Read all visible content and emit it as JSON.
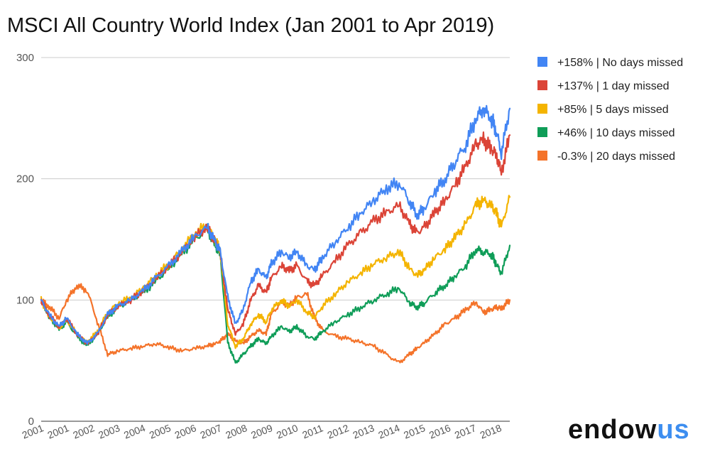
{
  "chart_data": {
    "type": "line",
    "title": "MSCI All Country World Index (Jan 2001 to Apr 2019)",
    "xlabel": "",
    "ylabel": "",
    "ylim": [
      0,
      300
    ],
    "yticks": [
      0,
      100,
      200,
      300
    ],
    "xlim": [
      2001.0,
      2019.33
    ],
    "xtick_labels": [
      "2001",
      "2001",
      "2002",
      "2003",
      "2004",
      "2005",
      "2006",
      "2007",
      "2008",
      "2009",
      "2010",
      "2011",
      "2012",
      "2013",
      "2014",
      "2015",
      "2016",
      "2017",
      "2018"
    ],
    "grid": true,
    "legend_position": "right",
    "series": [
      {
        "name": "+158% | No days missed",
        "color": "#4285f4",
        "x": [
          2001.0,
          2001.3,
          2001.7,
          2002.0,
          2002.4,
          2002.8,
          2003.2,
          2003.6,
          2004.0,
          2004.5,
          2005.0,
          2005.5,
          2006.0,
          2006.5,
          2007.0,
          2007.5,
          2007.8,
          2008.0,
          2008.3,
          2008.6,
          2008.9,
          2009.2,
          2009.5,
          2009.8,
          2010.0,
          2010.4,
          2010.7,
          2011.0,
          2011.4,
          2011.7,
          2012.0,
          2012.5,
          2013.0,
          2013.5,
          2014.0,
          2014.5,
          2015.0,
          2015.4,
          2015.7,
          2016.0,
          2016.4,
          2016.8,
          2017.2,
          2017.6,
          2018.0,
          2018.3,
          2018.6,
          2018.8,
          2019.0,
          2019.33
        ],
        "y": [
          100,
          88,
          78,
          85,
          72,
          64,
          72,
          88,
          95,
          100,
          108,
          118,
          128,
          140,
          152,
          160,
          148,
          140,
          102,
          80,
          92,
          115,
          125,
          118,
          130,
          140,
          135,
          140,
          128,
          125,
          135,
          148,
          160,
          172,
          182,
          192,
          197,
          182,
          170,
          176,
          190,
          200,
          215,
          228,
          250,
          258,
          250,
          240,
          222,
          258
        ]
      },
      {
        "name": "+137% | 1 day missed",
        "color": "#db4437",
        "x": [
          2001.0,
          2001.3,
          2001.7,
          2002.0,
          2002.4,
          2002.8,
          2003.2,
          2003.6,
          2004.0,
          2004.5,
          2005.0,
          2005.5,
          2006.0,
          2006.5,
          2007.0,
          2007.5,
          2007.8,
          2008.0,
          2008.3,
          2008.6,
          2008.9,
          2009.2,
          2009.5,
          2009.8,
          2010.0,
          2010.4,
          2010.7,
          2011.0,
          2011.4,
          2011.7,
          2012.0,
          2012.5,
          2013.0,
          2013.5,
          2014.0,
          2014.5,
          2015.0,
          2015.4,
          2015.7,
          2016.0,
          2016.4,
          2016.8,
          2017.2,
          2017.6,
          2018.0,
          2018.3,
          2018.6,
          2018.8,
          2019.0,
          2019.33
        ],
        "y": [
          100,
          88,
          78,
          85,
          72,
          64,
          72,
          88,
          95,
          100,
          108,
          118,
          128,
          140,
          152,
          160,
          148,
          140,
          92,
          72,
          80,
          100,
          112,
          106,
          118,
          128,
          124,
          128,
          115,
          112,
          120,
          132,
          145,
          155,
          165,
          172,
          178,
          163,
          155,
          160,
          172,
          182,
          195,
          210,
          228,
          232,
          225,
          220,
          205,
          236
        ]
      },
      {
        "name": "+85% | 5 days missed",
        "color": "#f4b400",
        "x": [
          2001.0,
          2001.3,
          2001.7,
          2002.0,
          2002.4,
          2002.8,
          2003.2,
          2003.6,
          2004.0,
          2004.5,
          2005.0,
          2005.5,
          2006.0,
          2006.5,
          2007.0,
          2007.5,
          2007.8,
          2008.0,
          2008.3,
          2008.6,
          2008.9,
          2009.2,
          2009.5,
          2009.8,
          2010.0,
          2010.4,
          2010.7,
          2011.0,
          2011.4,
          2011.7,
          2012.0,
          2012.5,
          2013.0,
          2013.5,
          2014.0,
          2014.5,
          2015.0,
          2015.4,
          2015.7,
          2016.0,
          2016.4,
          2016.8,
          2017.2,
          2017.6,
          2018.0,
          2018.3,
          2018.6,
          2018.8,
          2019.0,
          2019.33
        ],
        "y": [
          100,
          87,
          77,
          84,
          72,
          65,
          74,
          90,
          97,
          102,
          110,
          120,
          130,
          142,
          155,
          162,
          150,
          142,
          80,
          62,
          68,
          80,
          88,
          82,
          92,
          100,
          95,
          100,
          90,
          86,
          95,
          105,
          115,
          122,
          130,
          135,
          140,
          126,
          120,
          125,
          135,
          142,
          152,
          162,
          178,
          182,
          178,
          172,
          160,
          185
        ]
      },
      {
        "name": "+46% | 10 days missed",
        "color": "#0f9d58",
        "x": [
          2001.0,
          2001.3,
          2001.7,
          2002.0,
          2002.4,
          2002.8,
          2003.2,
          2003.6,
          2004.0,
          2004.5,
          2005.0,
          2005.5,
          2006.0,
          2006.5,
          2007.0,
          2007.5,
          2007.8,
          2008.0,
          2008.3,
          2008.6,
          2008.9,
          2009.2,
          2009.5,
          2009.8,
          2010.0,
          2010.4,
          2010.7,
          2011.0,
          2011.4,
          2011.7,
          2012.0,
          2012.5,
          2013.0,
          2013.5,
          2014.0,
          2014.5,
          2015.0,
          2015.4,
          2015.7,
          2016.0,
          2016.4,
          2016.8,
          2017.2,
          2017.6,
          2018.0,
          2018.3,
          2018.6,
          2018.8,
          2019.0,
          2019.33
        ],
        "y": [
          100,
          86,
          76,
          82,
          70,
          62,
          72,
          86,
          94,
          100,
          106,
          116,
          126,
          138,
          150,
          158,
          145,
          138,
          65,
          48,
          55,
          62,
          68,
          64,
          70,
          78,
          74,
          78,
          70,
          68,
          74,
          82,
          88,
          94,
          100,
          105,
          110,
          98,
          94,
          98,
          106,
          112,
          120,
          128,
          142,
          140,
          138,
          130,
          122,
          145
        ]
      },
      {
        "name": "-0.3% | 20 days missed",
        "color": "#f4732a",
        "x": [
          2001.0,
          2001.3,
          2001.7,
          2002.0,
          2002.4,
          2002.8,
          2003.2,
          2003.6,
          2004.0,
          2004.5,
          2005.0,
          2005.5,
          2006.0,
          2006.5,
          2007.0,
          2007.5,
          2007.8,
          2008.0,
          2008.3,
          2008.6,
          2008.9,
          2009.2,
          2009.5,
          2009.8,
          2010.0,
          2010.4,
          2010.7,
          2011.0,
          2011.4,
          2011.7,
          2012.0,
          2012.5,
          2013.0,
          2013.5,
          2014.0,
          2014.5,
          2015.0,
          2015.4,
          2015.7,
          2016.0,
          2016.4,
          2016.8,
          2017.2,
          2017.6,
          2018.0,
          2018.3,
          2018.6,
          2018.8,
          2019.0,
          2019.33
        ],
        "y": [
          100,
          95,
          85,
          100,
          112,
          108,
          82,
          55,
          58,
          60,
          62,
          64,
          61,
          58,
          60,
          62,
          64,
          66,
          72,
          66,
          64,
          70,
          75,
          72,
          88,
          98,
          95,
          102,
          105,
          85,
          75,
          70,
          68,
          65,
          62,
          55,
          48,
          55,
          60,
          65,
          72,
          80,
          85,
          92,
          98,
          90,
          92,
          94,
          93,
          100
        ]
      }
    ]
  },
  "brand": {
    "logo_part1": "endow",
    "logo_part2": "us",
    "logo_color_dark": "#111111",
    "logo_color_accent": "#3d8ef0"
  }
}
